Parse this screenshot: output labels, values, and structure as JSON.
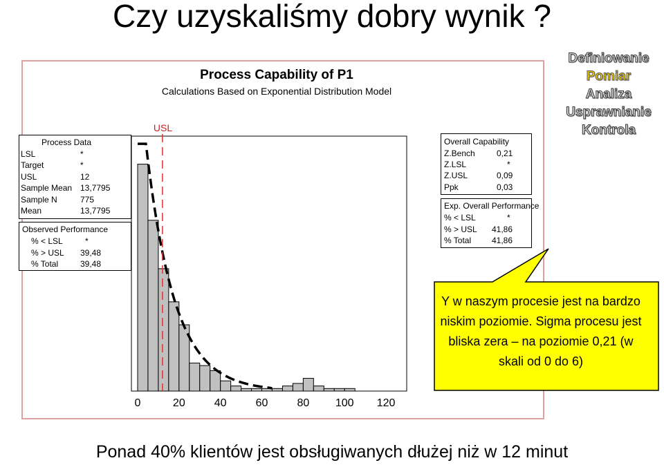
{
  "slide": {
    "title": "Czy uzyskaliśmy dobry wynik ?",
    "footer": "Ponad 40% klientów jest obsługiwanych dłużej niż w 12 minut"
  },
  "process_data": {
    "header": "Process Data",
    "rows": [
      {
        "label": "LSL",
        "value": "*"
      },
      {
        "label": "Target",
        "value": "*"
      },
      {
        "label": "USL",
        "value": "12"
      },
      {
        "label": "Sample Mean",
        "value": "13,7795"
      },
      {
        "label": "Sample N",
        "value": "775"
      },
      {
        "label": "Mean",
        "value": "13,7795"
      }
    ]
  },
  "observed_performance": {
    "header": "Observed Performance",
    "rows": [
      {
        "label": "% < LSL",
        "value": "*"
      },
      {
        "label": "% > USL",
        "value": "39,48"
      },
      {
        "label": "% Total",
        "value": "39,48"
      }
    ]
  },
  "overall_capability": {
    "header": "Overall Capability",
    "rows": [
      {
        "label": "Z.Bench",
        "value": "0,21"
      },
      {
        "label": "Z.LSL",
        "value": "*"
      },
      {
        "label": "Z.USL",
        "value": "0,09"
      },
      {
        "label": "Ppk",
        "value": "0,03"
      }
    ]
  },
  "exp_performance": {
    "header": "Exp. Overall Performance",
    "rows": [
      {
        "label": "% < LSL",
        "value": "*"
      },
      {
        "label": "% > USL",
        "value": "41,86"
      },
      {
        "label": "% Total",
        "value": "41,86"
      }
    ]
  },
  "stages": {
    "items": [
      {
        "label": "Definiowanie",
        "active": false
      },
      {
        "label": "Pomiar",
        "active": true
      },
      {
        "label": "Analiza",
        "active": false
      },
      {
        "label": "Usprawnianie",
        "active": false
      },
      {
        "label": "Kontrola",
        "active": false
      }
    ]
  },
  "callout": {
    "text": "Y w naszym procesie jest na bardzo niskim poziomie. Sigma procesu jest bliska zera – na poziomie 0,21 (w skali od 0 do 6)"
  },
  "colors": {
    "bar_fill": "#c0c0c0",
    "usl_line": "#e03030",
    "panel_border": "#e0a0a0",
    "stage_active": "#f0d000",
    "callout_fill": "#ffff00"
  },
  "chart_data": {
    "type": "bar",
    "title": "Process Capability of P1",
    "subtitle": "Calculations Based on Exponential Distribution Model",
    "usl_label": "USL",
    "usl_value": 12,
    "x_ticks": [
      0,
      20,
      40,
      60,
      80,
      100,
      120
    ],
    "xlim": [
      -3,
      130
    ],
    "ylim": [
      0,
      1
    ],
    "bin_width": 5,
    "bins": [
      {
        "start": 0,
        "value": 0.89
      },
      {
        "start": 5,
        "value": 0.67
      },
      {
        "start": 10,
        "value": 0.48
      },
      {
        "start": 15,
        "value": 0.35
      },
      {
        "start": 20,
        "value": 0.26
      },
      {
        "start": 25,
        "value": 0.11
      },
      {
        "start": 30,
        "value": 0.1
      },
      {
        "start": 35,
        "value": 0.08
      },
      {
        "start": 40,
        "value": 0.04
      },
      {
        "start": 45,
        "value": 0.02
      },
      {
        "start": 50,
        "value": 0.01
      },
      {
        "start": 55,
        "value": 0.01
      },
      {
        "start": 60,
        "value": 0.01
      },
      {
        "start": 65,
        "value": 0.01
      },
      {
        "start": 70,
        "value": 0.02
      },
      {
        "start": 75,
        "value": 0.03
      },
      {
        "start": 80,
        "value": 0.05
      },
      {
        "start": 85,
        "value": 0.02
      },
      {
        "start": 90,
        "value": 0.01
      },
      {
        "start": 95,
        "value": 0.01
      },
      {
        "start": 100,
        "value": 0.01
      }
    ],
    "fit_curve": {
      "distribution": "exponential",
      "mean": 13.7795,
      "peak": 1.3
    }
  }
}
